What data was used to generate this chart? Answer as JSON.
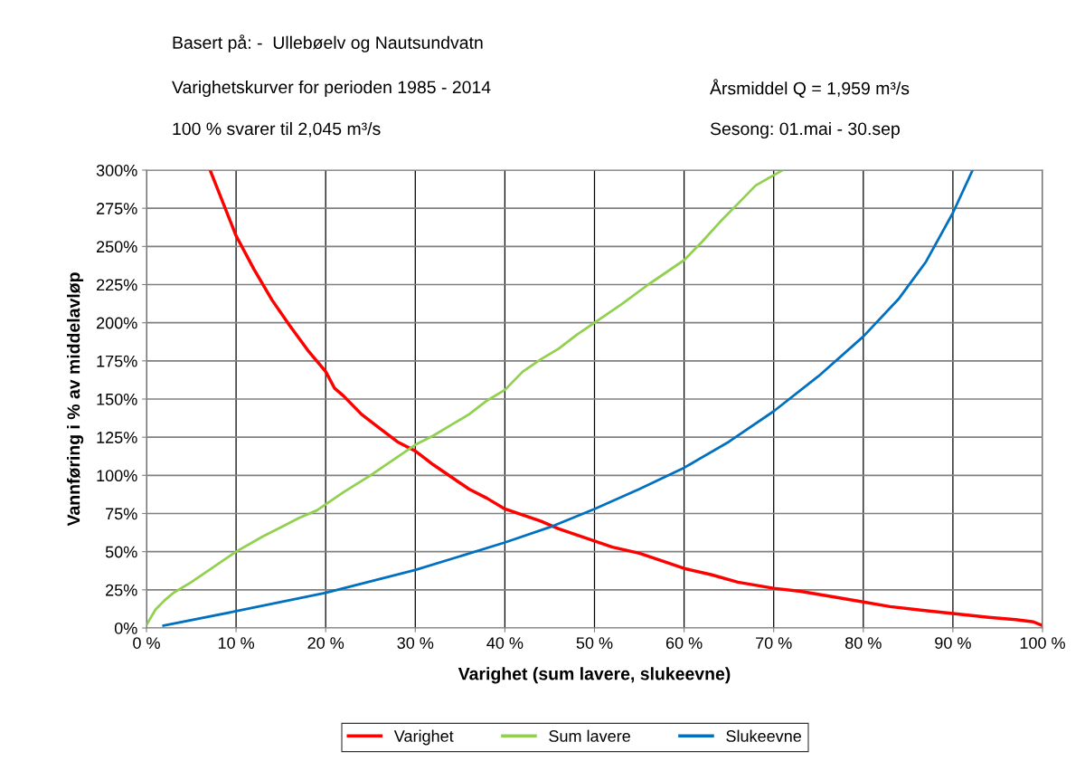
{
  "chart_data": {
    "type": "line",
    "annotations": [
      "Basert på: -  Ullebøelv og Nautsundvatn",
      "Varighetskurver for perioden 1985 - 2014",
      "100 % svarer til 2,045 m³/s",
      "Årsmiddel Q = 1,959 m³/s",
      "Sesong: 01.mai - 30.sep"
    ],
    "xlabel": "Varighet (sum lavere, slukeevne)",
    "ylabel": "Vannføring i % av middelavløp",
    "xlim": [
      0,
      100
    ],
    "ylim": [
      0,
      300
    ],
    "xticks": [
      {
        "value": 0,
        "label": "0 %"
      },
      {
        "value": 10,
        "label": "10 %"
      },
      {
        "value": 20,
        "label": "20 %"
      },
      {
        "value": 30,
        "label": "30 %"
      },
      {
        "value": 40,
        "label": "40 %"
      },
      {
        "value": 50,
        "label": "50 %"
      },
      {
        "value": 60,
        "label": "60 %"
      },
      {
        "value": 70,
        "label": "70 %"
      },
      {
        "value": 80,
        "label": "80 %"
      },
      {
        "value": 90,
        "label": "90 %"
      },
      {
        "value": 100,
        "label": "100 %"
      }
    ],
    "yticks": [
      {
        "value": 0,
        "label": "0%"
      },
      {
        "value": 25,
        "label": "25%"
      },
      {
        "value": 50,
        "label": "50%"
      },
      {
        "value": 75,
        "label": "75%"
      },
      {
        "value": 100,
        "label": "100%"
      },
      {
        "value": 125,
        "label": "125%"
      },
      {
        "value": 150,
        "label": "150%"
      },
      {
        "value": 175,
        "label": "175%"
      },
      {
        "value": 200,
        "label": "200%"
      },
      {
        "value": 225,
        "label": "225%"
      },
      {
        "value": 250,
        "label": "250%"
      },
      {
        "value": 275,
        "label": "275%"
      },
      {
        "value": 300,
        "label": "300%"
      }
    ],
    "grid": true,
    "legend": "bottom",
    "marker": "none",
    "line_style": "solid",
    "series": [
      {
        "name": "Varighet",
        "color": "#ff0000",
        "x": [
          7.1,
          10,
          12,
          14,
          16,
          18,
          20,
          21,
          22,
          24,
          26,
          28,
          30,
          32,
          34,
          36,
          38,
          40,
          42,
          44,
          46,
          48,
          50,
          52,
          55,
          58,
          60,
          63,
          66,
          70,
          73,
          76,
          80,
          83,
          86,
          90,
          94,
          97,
          99,
          100
        ],
        "values": [
          300,
          257,
          235,
          215,
          198,
          182,
          168,
          157,
          152,
          140,
          131,
          122,
          116,
          107,
          99,
          91,
          85,
          78,
          74,
          70,
          65,
          61,
          57,
          53,
          49,
          43,
          39,
          35,
          30,
          26,
          24,
          21,
          17,
          14,
          12,
          9.5,
          7,
          5.5,
          4,
          1.5
        ]
      },
      {
        "name": "Sum lavere",
        "color": "#92d050",
        "x": [
          0,
          1,
          2,
          3,
          5,
          7,
          10,
          13,
          15,
          17,
          19,
          20,
          22,
          25,
          28,
          30,
          32,
          34,
          36,
          38,
          40,
          42,
          44,
          46,
          48,
          50,
          53,
          56,
          58,
          60,
          62,
          64,
          66,
          68,
          71
        ],
        "values": [
          2,
          12,
          18,
          23,
          30,
          38,
          50,
          60,
          66,
          72,
          77,
          81,
          89,
          100,
          112,
          120,
          126,
          133,
          140,
          149,
          156,
          168,
          176,
          183,
          192,
          200,
          212,
          225,
          233,
          241,
          253,
          266,
          278,
          290,
          300
        ]
      },
      {
        "name": "Slukeevne",
        "color": "#0070c0",
        "x": [
          1.9,
          10,
          20,
          30,
          40,
          45,
          50,
          55,
          60,
          65,
          70,
          75,
          80,
          84,
          87,
          90,
          92.2
        ],
        "values": [
          1.5,
          11,
          23,
          38,
          56,
          66,
          78,
          91,
          105,
          122,
          142,
          165,
          191,
          216,
          240,
          272,
          300
        ]
      }
    ]
  }
}
